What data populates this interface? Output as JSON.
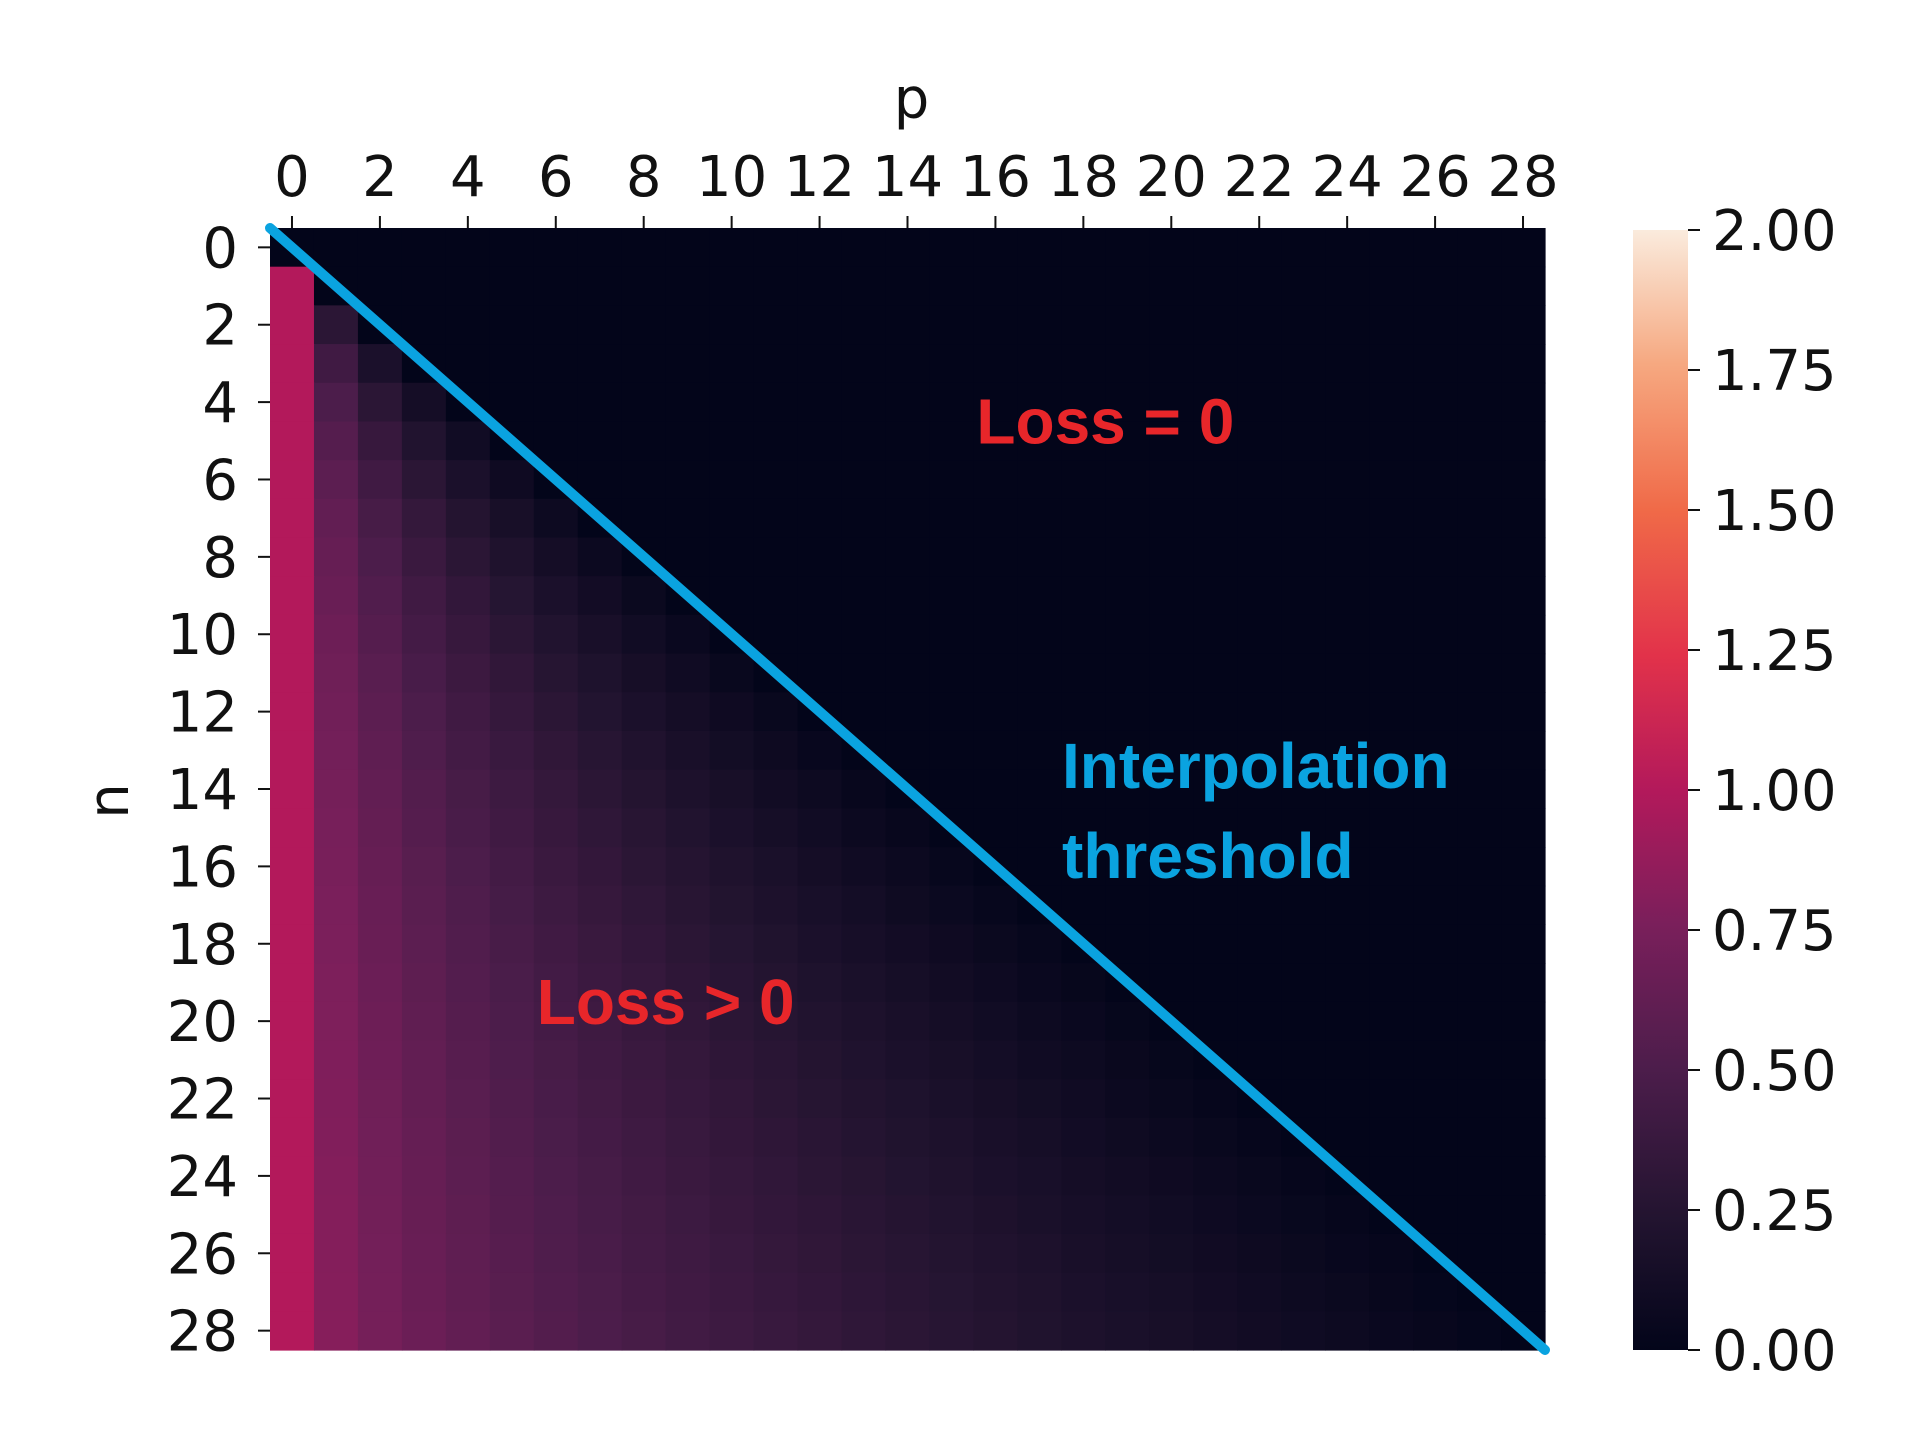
{
  "chart_data": {
    "type": "heatmap",
    "title": "",
    "xlabel": "p",
    "ylabel": "n",
    "x_axis_position": "top",
    "x_range": [
      0,
      28
    ],
    "y_range": [
      0,
      28
    ],
    "x_ticks": [
      "0",
      "2",
      "4",
      "6",
      "8",
      "10",
      "12",
      "14",
      "16",
      "18",
      "20",
      "22",
      "24",
      "26",
      "28"
    ],
    "y_ticks": [
      "0",
      "2",
      "4",
      "6",
      "8",
      "10",
      "12",
      "14",
      "16",
      "18",
      "20",
      "22",
      "24",
      "26",
      "28"
    ],
    "value_formula": "loss(n,p) = 1 - sqrt(p/n) for p < n, else 0 (approximate reading of cell colors)",
    "colorbar": {
      "range": [
        0.0,
        2.0
      ],
      "ticks": [
        "0.00",
        "0.25",
        "0.50",
        "0.75",
        "1.00",
        "1.25",
        "1.50",
        "1.75",
        "2.00"
      ],
      "colormap": "rocket",
      "placement": "right"
    },
    "annotations": [
      {
        "text": "Loss = 0",
        "color": "#e8262a",
        "at_data": [
          19,
          5
        ]
      },
      {
        "text": "Interpolation",
        "color": "#0aa3e0",
        "at_data": [
          22,
          12
        ]
      },
      {
        "text": "threshold",
        "color": "#0aa3e0",
        "at_data": [
          21,
          14
        ]
      },
      {
        "text": "Loss > 0",
        "color": "#e8262a",
        "at_data": [
          9,
          20
        ]
      }
    ],
    "threshold_line": {
      "from": [
        0,
        0
      ],
      "to": [
        29,
        29
      ],
      "color": "#0aa3e0",
      "description": "p = n diagonal"
    }
  }
}
